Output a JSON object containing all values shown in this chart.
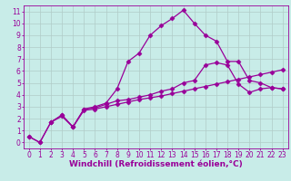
{
  "xlabel": "Windchill (Refroidissement éolien,°C)",
  "bg_color": "#c8ece8",
  "line_color": "#990099",
  "grid_color": "#b0ccc8",
  "xlim": [
    -0.5,
    23.5
  ],
  "ylim": [
    -0.5,
    11.5
  ],
  "xticks": [
    0,
    1,
    2,
    3,
    4,
    5,
    6,
    7,
    8,
    9,
    10,
    11,
    12,
    13,
    14,
    15,
    16,
    17,
    18,
    19,
    20,
    21,
    22,
    23
  ],
  "yticks": [
    0,
    1,
    2,
    3,
    4,
    5,
    6,
    7,
    8,
    9,
    10,
    11
  ],
  "line1_x": [
    0,
    1,
    2,
    3,
    4,
    5,
    6,
    7,
    8,
    9,
    10,
    11,
    12,
    13,
    14,
    15,
    16,
    17,
    18,
    19,
    20,
    21,
    22,
    23
  ],
  "line1_y": [
    0.5,
    0.0,
    1.7,
    2.3,
    1.3,
    2.8,
    3.0,
    3.3,
    4.5,
    6.8,
    7.5,
    9.0,
    9.8,
    10.4,
    11.1,
    10.0,
    9.0,
    8.5,
    6.8,
    6.8,
    5.2,
    5.0,
    4.6,
    4.5
  ],
  "line2_x": [
    0,
    1,
    2,
    3,
    4,
    5,
    6,
    7,
    8,
    9,
    10,
    11,
    12,
    13,
    14,
    15,
    16,
    17,
    18,
    19,
    20,
    21,
    22,
    23
  ],
  "line2_y": [
    0.5,
    0.0,
    1.7,
    2.3,
    1.3,
    2.8,
    2.9,
    3.2,
    3.5,
    3.6,
    3.8,
    4.0,
    4.3,
    4.5,
    5.0,
    5.2,
    6.5,
    6.7,
    6.5,
    4.9,
    4.2,
    4.5,
    4.6,
    4.5
  ],
  "line3_x": [
    2,
    3,
    4,
    5,
    6,
    7,
    8,
    9,
    10,
    11,
    12,
    13,
    14,
    15,
    16,
    17,
    18,
    19,
    20,
    21,
    22,
    23
  ],
  "line3_y": [
    1.7,
    2.2,
    1.3,
    2.7,
    2.8,
    3.0,
    3.2,
    3.4,
    3.6,
    3.75,
    3.9,
    4.1,
    4.3,
    4.5,
    4.7,
    4.9,
    5.1,
    5.3,
    5.5,
    5.7,
    5.9,
    6.1
  ],
  "marker": "D",
  "markersize": 2.5,
  "linewidth": 0.9,
  "xlabel_fontsize": 6.5,
  "tick_fontsize": 5.5
}
